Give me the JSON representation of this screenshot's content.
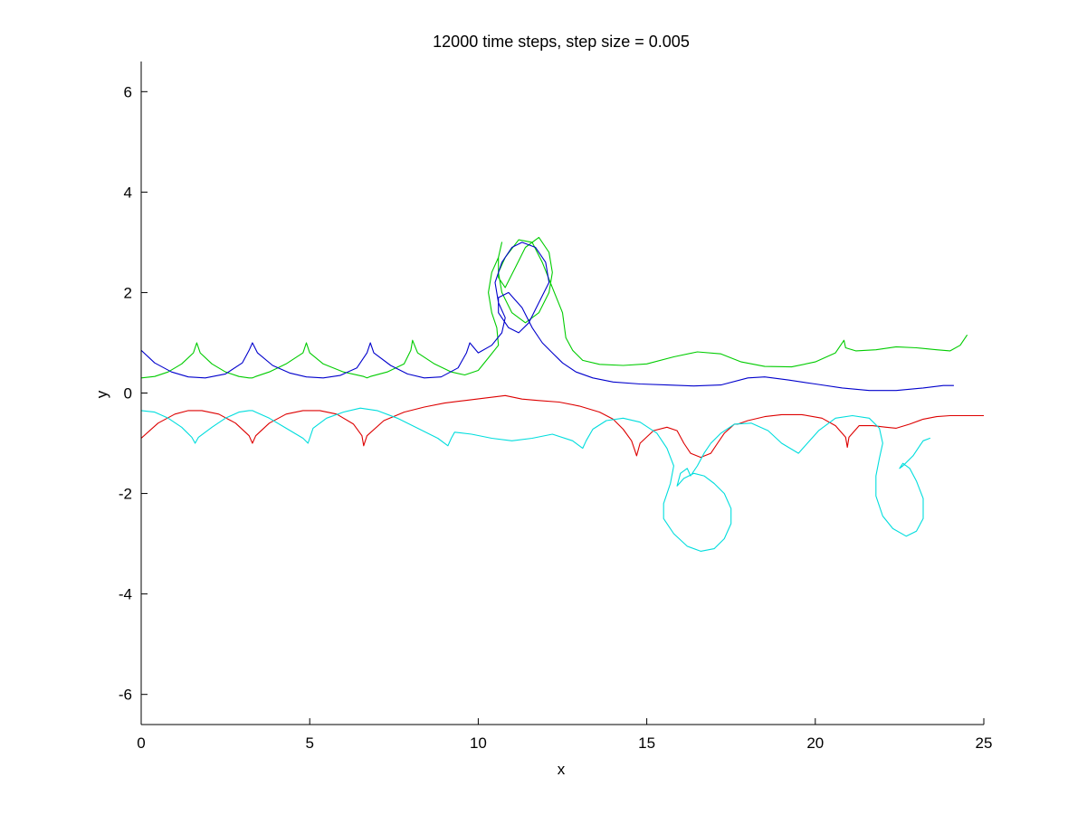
{
  "chart_data": {
    "type": "line",
    "title": "12000 time steps, step size = 0.005",
    "xlabel": "x",
    "ylabel": "y",
    "xlim": [
      0,
      25
    ],
    "ylim": [
      -6.6,
      6.6
    ],
    "x_ticks": [
      0,
      5,
      10,
      15,
      20,
      25
    ],
    "x_tick_labels": [
      "0",
      "5",
      "10",
      "15",
      "20",
      "25"
    ],
    "y_ticks": [
      -6,
      -4,
      -2,
      0,
      2,
      4,
      6
    ],
    "y_tick_labels": [
      "-6",
      "-4",
      "-2",
      "0",
      "2",
      "4",
      "6"
    ],
    "grid": false,
    "legend": "none",
    "series": [
      {
        "color": "#00cc00",
        "x": [
          0.0,
          0.4,
          0.8,
          1.2,
          1.55,
          1.65,
          1.75,
          2.1,
          2.5,
          2.9,
          3.2,
          3.3,
          3.4,
          3.8,
          4.3,
          4.8,
          4.9,
          5.0,
          5.4,
          6.0,
          6.6,
          6.7,
          6.8,
          7.3,
          7.8,
          8.0,
          8.05,
          8.2,
          8.7,
          9.2,
          9.6,
          10.0,
          10.3,
          10.6,
          10.55,
          10.4,
          10.3,
          10.4,
          10.6,
          10.7,
          10.6,
          10.6,
          10.8,
          11.1,
          11.4,
          11.8,
          12.1,
          12.2,
          12.1,
          11.8,
          11.4,
          11.0,
          10.7,
          10.6,
          10.8,
          11.2,
          11.6,
          11.9,
          12.2,
          12.5,
          12.6,
          12.8,
          13.1,
          13.6,
          14.3,
          15.0,
          15.8,
          16.5,
          17.2,
          17.8,
          18.5,
          19.3,
          20.0,
          20.6,
          20.85,
          20.9,
          21.2,
          21.8,
          22.4,
          23.0,
          23.6,
          24.0,
          24.3,
          24.5
        ],
        "y": [
          0.3,
          0.33,
          0.42,
          0.58,
          0.8,
          1.0,
          0.8,
          0.58,
          0.42,
          0.33,
          0.3,
          0.3,
          0.33,
          0.42,
          0.58,
          0.8,
          1.0,
          0.8,
          0.58,
          0.42,
          0.33,
          0.3,
          0.33,
          0.42,
          0.58,
          0.85,
          1.05,
          0.8,
          0.58,
          0.42,
          0.36,
          0.45,
          0.7,
          0.95,
          1.3,
          1.6,
          2.0,
          2.4,
          2.7,
          3.0,
          2.7,
          2.3,
          2.1,
          2.5,
          2.9,
          3.1,
          2.8,
          2.4,
          2.0,
          1.6,
          1.4,
          1.6,
          2.0,
          2.4,
          2.7,
          3.05,
          3.0,
          2.6,
          2.1,
          1.6,
          1.1,
          0.85,
          0.65,
          0.57,
          0.55,
          0.58,
          0.72,
          0.82,
          0.78,
          0.62,
          0.53,
          0.52,
          0.62,
          0.8,
          1.05,
          0.9,
          0.84,
          0.86,
          0.92,
          0.9,
          0.86,
          0.84,
          0.95,
          1.15
        ]
      },
      {
        "color": "#0000cc",
        "x": [
          0.0,
          0.4,
          0.9,
          1.4,
          1.9,
          2.5,
          3.0,
          3.2,
          3.3,
          3.45,
          3.9,
          4.4,
          4.9,
          5.4,
          5.9,
          6.4,
          6.7,
          6.8,
          6.9,
          7.4,
          7.9,
          8.4,
          8.9,
          9.4,
          9.65,
          9.75,
          10.0,
          10.4,
          10.7,
          10.8,
          10.6,
          10.5,
          10.7,
          11.0,
          11.3,
          11.7,
          12.0,
          12.1,
          11.8,
          11.5,
          11.2,
          10.9,
          10.6,
          10.6,
          10.9,
          11.3,
          11.6,
          11.9,
          12.2,
          12.5,
          12.9,
          13.4,
          14.0,
          14.8,
          15.6,
          16.4,
          17.2,
          18.0,
          18.5,
          19.2,
          20.0,
          20.8,
          21.6,
          22.4,
          23.2,
          23.8,
          24.1
        ],
        "y": [
          0.85,
          0.6,
          0.42,
          0.32,
          0.3,
          0.38,
          0.6,
          0.85,
          1.0,
          0.8,
          0.55,
          0.4,
          0.32,
          0.3,
          0.35,
          0.5,
          0.8,
          1.0,
          0.8,
          0.55,
          0.38,
          0.3,
          0.32,
          0.5,
          0.8,
          1.0,
          0.8,
          0.95,
          1.2,
          1.5,
          1.8,
          2.2,
          2.6,
          2.9,
          3.0,
          2.9,
          2.6,
          2.2,
          1.8,
          1.4,
          1.2,
          1.3,
          1.6,
          1.9,
          2.0,
          1.7,
          1.3,
          1.0,
          0.8,
          0.6,
          0.42,
          0.3,
          0.22,
          0.18,
          0.16,
          0.14,
          0.16,
          0.3,
          0.32,
          0.26,
          0.18,
          0.1,
          0.05,
          0.05,
          0.1,
          0.15,
          0.15
        ]
      },
      {
        "color": "#dd0000",
        "x": [
          0.0,
          0.5,
          1.0,
          1.4,
          1.8,
          2.3,
          2.8,
          3.2,
          3.3,
          3.4,
          3.8,
          4.3,
          4.8,
          5.3,
          5.8,
          6.3,
          6.55,
          6.6,
          6.7,
          7.2,
          7.8,
          8.4,
          9.0,
          9.6,
          10.2,
          10.8,
          11.3,
          11.8,
          12.4,
          13.0,
          13.6,
          14.0,
          14.3,
          14.55,
          14.65,
          14.7,
          14.8,
          15.2,
          15.6,
          15.9,
          16.1,
          16.3,
          16.6,
          16.9,
          17.1,
          17.3,
          17.5,
          17.6,
          17.7,
          18.0,
          18.5,
          19.0,
          19.6,
          20.2,
          20.6,
          20.9,
          20.95,
          21.0,
          21.3,
          21.7,
          22.1,
          22.4,
          22.8,
          23.2,
          23.6,
          24.0,
          24.5,
          25.0
        ],
        "y": [
          -0.9,
          -0.6,
          -0.42,
          -0.35,
          -0.35,
          -0.42,
          -0.6,
          -0.85,
          -1.0,
          -0.85,
          -0.6,
          -0.42,
          -0.35,
          -0.35,
          -0.42,
          -0.62,
          -0.85,
          -1.05,
          -0.85,
          -0.55,
          -0.38,
          -0.28,
          -0.2,
          -0.15,
          -0.1,
          -0.05,
          -0.12,
          -0.15,
          -0.18,
          -0.26,
          -0.38,
          -0.52,
          -0.72,
          -0.95,
          -1.15,
          -1.25,
          -1.0,
          -0.75,
          -0.68,
          -0.75,
          -1.0,
          -1.2,
          -1.28,
          -1.2,
          -1.0,
          -0.8,
          -0.68,
          -0.62,
          -0.62,
          -0.55,
          -0.47,
          -0.43,
          -0.43,
          -0.5,
          -0.65,
          -0.88,
          -1.08,
          -0.88,
          -0.65,
          -0.65,
          -0.68,
          -0.7,
          -0.62,
          -0.52,
          -0.47,
          -0.45,
          -0.45,
          -0.45
        ]
      },
      {
        "color": "#00dddd",
        "x": [
          0.0,
          0.4,
          0.8,
          1.2,
          1.5,
          1.6,
          1.7,
          2.1,
          2.5,
          2.9,
          3.2,
          3.3,
          3.4,
          3.8,
          4.3,
          4.8,
          4.95,
          5.0,
          5.1,
          5.5,
          6.0,
          6.5,
          7.0,
          7.6,
          8.2,
          8.8,
          9.1,
          9.2,
          9.3,
          9.8,
          10.4,
          11.0,
          11.6,
          12.2,
          12.8,
          13.1,
          13.2,
          13.4,
          13.8,
          14.3,
          14.8,
          15.3,
          15.6,
          15.8,
          15.7,
          15.5,
          15.5,
          15.8,
          16.2,
          16.6,
          17.0,
          17.3,
          17.5,
          17.5,
          17.3,
          17.0,
          16.7,
          16.4,
          16.1,
          15.9,
          16.0,
          16.2,
          16.3,
          16.5,
          16.7,
          16.9,
          17.2,
          17.6,
          18.1,
          18.6,
          19.0,
          19.5,
          20.1,
          20.6,
          21.1,
          21.6,
          21.9,
          22.0,
          21.9,
          21.8,
          21.8,
          22.0,
          22.3,
          22.7,
          23.0,
          23.2,
          23.2,
          23.0,
          22.8,
          22.6,
          22.5,
          22.6,
          22.9,
          23.1,
          23.2,
          23.4
        ],
        "y": [
          -0.35,
          -0.38,
          -0.5,
          -0.68,
          -0.88,
          -1.0,
          -0.88,
          -0.68,
          -0.5,
          -0.38,
          -0.35,
          -0.35,
          -0.38,
          -0.5,
          -0.7,
          -0.9,
          -1.0,
          -0.9,
          -0.7,
          -0.5,
          -0.38,
          -0.3,
          -0.35,
          -0.5,
          -0.7,
          -0.9,
          -1.05,
          -0.9,
          -0.78,
          -0.82,
          -0.9,
          -0.95,
          -0.9,
          -0.82,
          -0.95,
          -1.1,
          -0.95,
          -0.72,
          -0.55,
          -0.5,
          -0.58,
          -0.8,
          -1.1,
          -1.45,
          -1.8,
          -2.2,
          -2.5,
          -2.8,
          -3.05,
          -3.15,
          -3.1,
          -2.9,
          -2.6,
          -2.3,
          -2.0,
          -1.8,
          -1.65,
          -1.6,
          -1.7,
          -1.85,
          -1.6,
          -1.5,
          -1.65,
          -1.45,
          -1.2,
          -1.0,
          -0.8,
          -0.62,
          -0.6,
          -0.75,
          -1.0,
          -1.2,
          -0.75,
          -0.5,
          -0.45,
          -0.5,
          -0.7,
          -1.0,
          -1.3,
          -1.65,
          -2.05,
          -2.45,
          -2.7,
          -2.85,
          -2.75,
          -2.5,
          -2.1,
          -1.75,
          -1.5,
          -1.4,
          -1.5,
          -1.45,
          -1.25,
          -1.05,
          -0.95,
          -0.9
        ]
      }
    ]
  }
}
